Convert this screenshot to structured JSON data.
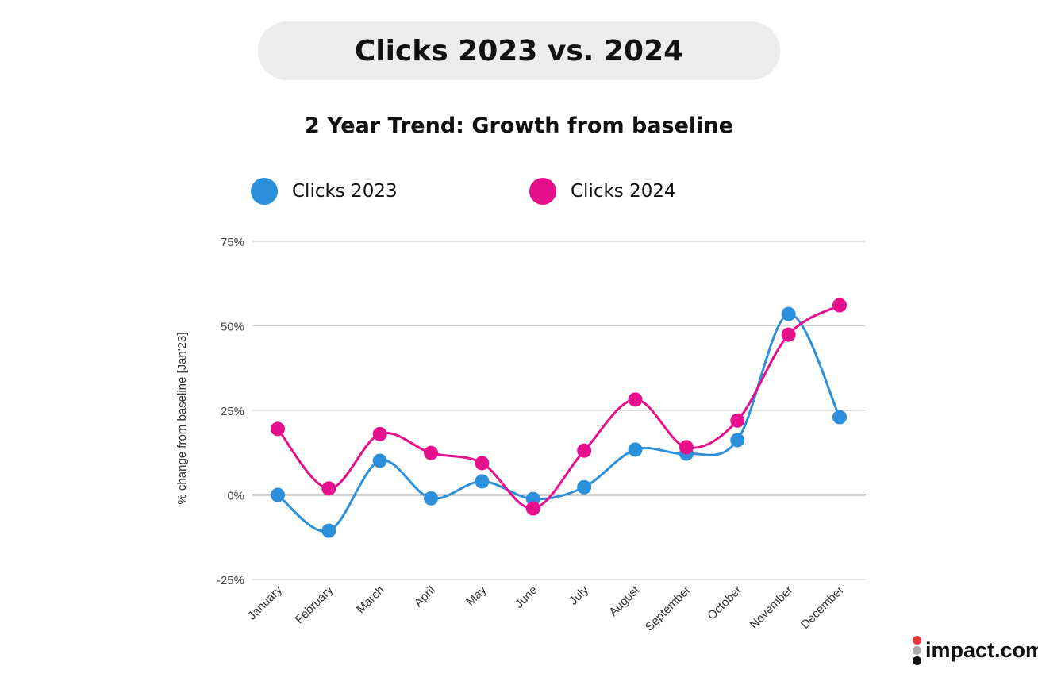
{
  "title": "Clicks 2023 vs. 2024",
  "subtitle": "2 Year Trend: Growth from baseline",
  "logo": "impact.com",
  "chart_data": {
    "type": "line",
    "smooth": true,
    "categories": [
      "January",
      "February",
      "March",
      "April",
      "May",
      "June",
      "July",
      "August",
      "September",
      "October",
      "November",
      "December"
    ],
    "series": [
      {
        "name": "Clicks 2023",
        "color": "#2b8fdc",
        "values": [
          0,
          -10.6,
          10.1,
          -1.0,
          4.0,
          -1.2,
          2.3,
          13.4,
          12.2,
          16.2,
          53.5,
          23.0
        ]
      },
      {
        "name": "Clicks 2024",
        "color": "#e60f8c",
        "values": [
          19.5,
          1.9,
          18.0,
          12.4,
          9.4,
          -4.0,
          13.1,
          28.2,
          14.1,
          22.0,
          47.4,
          56.1
        ]
      }
    ],
    "ylabel": "% change from baseline [Jan'23]",
    "xlabel": "",
    "ylim": [
      -25,
      75
    ],
    "yticks": [
      75,
      50,
      25,
      0,
      -25
    ],
    "ytick_labels": [
      "75%",
      "50%",
      "25%",
      "0%",
      "-25%"
    ],
    "grid": true,
    "legend_position": "top"
  }
}
